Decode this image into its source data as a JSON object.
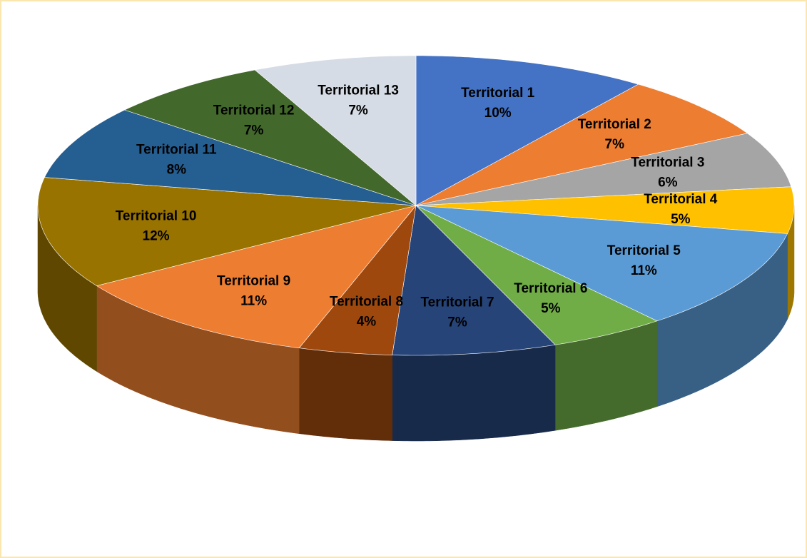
{
  "chart_data": {
    "type": "pie",
    "categories": [
      "Territorial 1",
      "Territorial 2",
      "Territorial 3",
      "Territorial 4",
      "Territorial 5",
      "Territorial 6",
      "Territorial 7",
      "Territorial 8",
      "Territorial 9",
      "Territorial 10",
      "Territorial 11",
      "Territorial 12",
      "Territorial 13"
    ],
    "values": [
      10,
      7,
      6,
      5,
      11,
      5,
      7,
      4,
      11,
      12,
      8,
      7,
      7
    ],
    "value_labels": [
      "10%",
      "7%",
      "6%",
      "5%",
      "11%",
      "5%",
      "7%",
      "4%",
      "11%",
      "12%",
      "8%",
      "7%",
      "7%"
    ],
    "colors": [
      "#4472c4",
      "#ed7d31",
      "#a5a5a5",
      "#ffc000",
      "#5b9bd5",
      "#70ad47",
      "#264478",
      "#9e480e",
      "#ed7d31",
      "#997300",
      "#255e91",
      "#43682b",
      "#d6dce5"
    ]
  }
}
